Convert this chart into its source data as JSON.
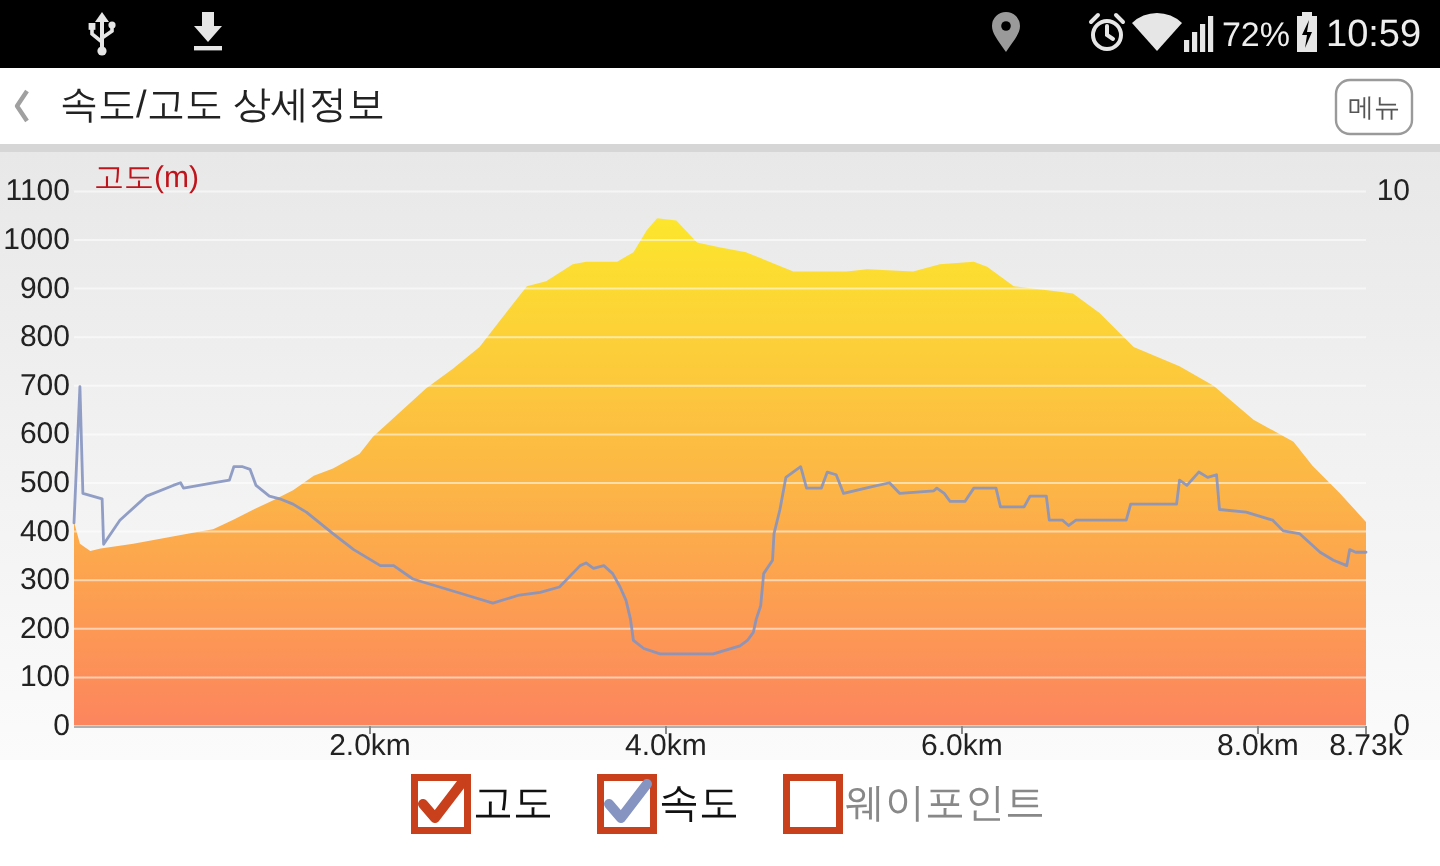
{
  "chart_data": {
    "type": "area",
    "title": "속도/고도 상세정보",
    "ylabel": "고도(m)",
    "annotations": [
      "72%",
      "10:59",
      "메뉴",
      "웨이포인트"
    ],
    "xlim": [
      0,
      8.73
    ],
    "xticks": [
      {
        "value": 2,
        "label": "2.0km"
      },
      {
        "value": 4,
        "label": "4.0km"
      },
      {
        "value": 6,
        "label": "6.0km"
      },
      {
        "value": 8,
        "label": "8.0km"
      },
      {
        "value": 8.73,
        "label": "8.73k"
      }
    ],
    "ylim": [
      0,
      1100
    ],
    "yticks": [
      0,
      100,
      200,
      300,
      400,
      500,
      600,
      700,
      800,
      900,
      1000,
      1100
    ],
    "y2lim": [
      0,
      10
    ],
    "y2ticks": [
      0,
      10
    ],
    "grid": "y",
    "legend": "bottom",
    "series": [
      {
        "name": "고도",
        "type": "area",
        "color": "#fcb845",
        "x": [
          0,
          0.04,
          0.11,
          0.18,
          0.4,
          0.85,
          0.94,
          1.08,
          1.21,
          1.35,
          1.48,
          1.62,
          1.75,
          1.93,
          2.02,
          2.2,
          2.38,
          2.56,
          2.74,
          2.88,
          3.06,
          3.19,
          3.37,
          3.46,
          3.67,
          3.78,
          3.87,
          3.94,
          4.07,
          4.21,
          4.36,
          4.54,
          4.86,
          5.22,
          5.36,
          5.67,
          5.85,
          6.08,
          6.17,
          6.35,
          6.62,
          6.75,
          6.93,
          7.16,
          7.47,
          7.7,
          7.97,
          8.24,
          8.37,
          8.55,
          8.73
        ],
        "values": [
          420,
          375,
          360,
          365,
          375,
          400,
          405,
          425,
          445,
          465,
          485,
          515,
          530,
          560,
          595,
          645,
          695,
          735,
          780,
          835,
          905,
          915,
          950,
          955,
          955,
          975,
          1020,
          1045,
          1040,
          995,
          985,
          975,
          935,
          935,
          940,
          935,
          950,
          955,
          945,
          905,
          895,
          890,
          850,
          780,
          740,
          700,
          630,
          585,
          535,
          480,
          420
        ]
      },
      {
        "name": "속도",
        "type": "line",
        "axis": "y2",
        "color": "#8594c0",
        "x": [
          0,
          0.04,
          0.06,
          0.19,
          0.2,
          0.31,
          0.49,
          0.67,
          0.72,
          0.74,
          0.94,
          1.05,
          1.08,
          1.14,
          1.19,
          1.23,
          1.32,
          1.39,
          1.48,
          1.57,
          1.75,
          1.89,
          2.07,
          2.16,
          2.29,
          2.47,
          2.65,
          2.83,
          3.01,
          3.15,
          3.28,
          3.42,
          3.46,
          3.51,
          3.58,
          3.64,
          3.69,
          3.73,
          3.76,
          3.78,
          3.85,
          3.96,
          4.32,
          4.5,
          4.55,
          4.59,
          4.61,
          4.64,
          4.66,
          4.72,
          4.73,
          4.77,
          4.81,
          4.91,
          4.95,
          5.05,
          5.09,
          5.15,
          5.2,
          5.35,
          5.51,
          5.58,
          5.81,
          5.83,
          5.88,
          5.92,
          6.02,
          6.08,
          6.23,
          6.26,
          6.42,
          6.46,
          6.57,
          6.59,
          6.68,
          6.72,
          6.77,
          7.11,
          7.14,
          7.45,
          7.47,
          7.52,
          7.6,
          7.66,
          7.72,
          7.74,
          7.92,
          8.1,
          8.17,
          8.28,
          8.42,
          8.51,
          8.6,
          8.62,
          8.66,
          8.73
        ],
        "values": [
          3.8,
          6.35,
          4.35,
          4.25,
          3.4,
          3.85,
          4.3,
          4.5,
          4.55,
          4.45,
          4.55,
          4.6,
          4.85,
          4.85,
          4.8,
          4.5,
          4.3,
          4.25,
          4.15,
          4.0,
          3.6,
          3.3,
          3.0,
          3.0,
          2.75,
          2.6,
          2.45,
          2.3,
          2.45,
          2.5,
          2.6,
          3.0,
          3.05,
          2.95,
          3.0,
          2.85,
          2.6,
          2.35,
          2.0,
          1.6,
          1.45,
          1.35,
          1.35,
          1.5,
          1.6,
          1.75,
          2.0,
          2.25,
          2.85,
          3.1,
          3.6,
          4.05,
          4.65,
          4.85,
          4.45,
          4.45,
          4.75,
          4.7,
          4.35,
          4.45,
          4.55,
          4.35,
          4.4,
          4.45,
          4.35,
          4.2,
          4.2,
          4.45,
          4.45,
          4.1,
          4.1,
          4.3,
          4.3,
          3.85,
          3.85,
          3.75,
          3.85,
          3.85,
          4.15,
          4.15,
          4.6,
          4.5,
          4.75,
          4.65,
          4.7,
          4.05,
          4.0,
          3.85,
          3.65,
          3.6,
          3.25,
          3.1,
          3.0,
          3.3,
          3.25,
          3.25
        ]
      }
    ]
  }
}
